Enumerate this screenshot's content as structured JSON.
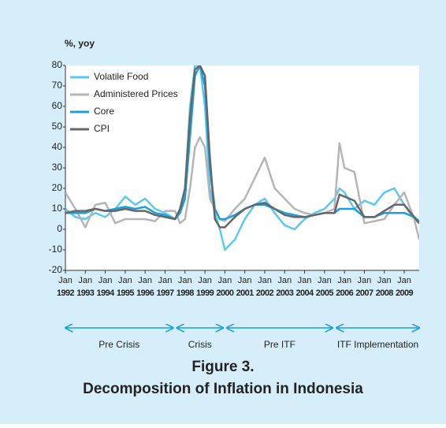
{
  "chart_data": {
    "type": "line",
    "y_label": "%, yoy",
    "figure_label": "Figure 3.",
    "title": "Decomposition of Inflation in Indonesia",
    "x": [
      1992,
      1992.5,
      1993,
      1993.5,
      1994,
      1994.5,
      1995,
      1995.5,
      1996,
      1996.5,
      1997,
      1997.5,
      1997.75,
      1998,
      1998.25,
      1998.5,
      1998.75,
      1999,
      1999.25,
      1999.5,
      1999.75,
      2000,
      2000.5,
      2001,
      2001.5,
      2002,
      2002.5,
      2003,
      2003.5,
      2004,
      2004.5,
      2005,
      2005.5,
      2005.75,
      2006,
      2006.5,
      2007,
      2007.5,
      2008,
      2008.5,
      2009,
      2009.5,
      2009.75
    ],
    "series": [
      {
        "name": "Volatile Food",
        "color": "#5cc8f0",
        "values": [
          10,
          6,
          5,
          8,
          6,
          10,
          16,
          12,
          15,
          10,
          8,
          5,
          8,
          20,
          60,
          80,
          80,
          60,
          20,
          8,
          0,
          -10,
          -5,
          5,
          12,
          15,
          8,
          2,
          0,
          5,
          8,
          10,
          15,
          20,
          18,
          10,
          14,
          12,
          18,
          20,
          12,
          5,
          3
        ]
      },
      {
        "name": "Administered Prices",
        "color": "#b5b5b5",
        "values": [
          18,
          10,
          1,
          12,
          13,
          3,
          5,
          5,
          5,
          4,
          9,
          9,
          3,
          5,
          20,
          40,
          45,
          40,
          15,
          10,
          5,
          4,
          10,
          15,
          25,
          35,
          20,
          15,
          10,
          8,
          7,
          8,
          10,
          42,
          30,
          28,
          3,
          4,
          5,
          12,
          18,
          5,
          -5
        ]
      },
      {
        "name": "Core",
        "color": "#18a0dc",
        "values": [
          8,
          8,
          8,
          10,
          9,
          10,
          11,
          10,
          11,
          8,
          7,
          5,
          8,
          15,
          45,
          75,
          80,
          70,
          30,
          10,
          5,
          5,
          7,
          10,
          12,
          12,
          10,
          8,
          7,
          6,
          7,
          8,
          8,
          10,
          10,
          10,
          6,
          6,
          8,
          8,
          8,
          6,
          4
        ]
      },
      {
        "name": "CPI",
        "color": "#666666",
        "values": [
          8,
          9,
          9,
          10,
          9,
          9,
          10,
          9,
          9,
          7,
          6,
          5,
          10,
          20,
          55,
          78,
          80,
          75,
          35,
          5,
          1,
          1,
          6,
          10,
          12,
          13,
          10,
          7,
          6,
          6,
          7,
          8,
          8,
          17,
          16,
          14,
          6,
          6,
          9,
          12,
          12,
          6,
          3
        ]
      }
    ],
    "xlim": [
      1992,
      2009.75
    ],
    "xticks": [
      {
        "value": 1992,
        "label": "Jan"
      },
      {
        "value": 1993,
        "label": "Jan"
      },
      {
        "value": 1994,
        "label": "Jan"
      },
      {
        "value": 1995,
        "label": "Jan"
      },
      {
        "value": 1996,
        "label": "Jan"
      },
      {
        "value": 1997,
        "label": "Jan"
      },
      {
        "value": 1998,
        "label": "Jan"
      },
      {
        "value": 1999,
        "label": "Jan"
      },
      {
        "value": 2000,
        "label": "Jan"
      },
      {
        "value": 2001,
        "label": "Jan"
      },
      {
        "value": 2002,
        "label": "Jan"
      },
      {
        "value": 2003,
        "label": "Jan"
      },
      {
        "value": 2004,
        "label": "Jan"
      },
      {
        "value": 2005,
        "label": "Jan"
      },
      {
        "value": 2006,
        "label": "Jan"
      },
      {
        "value": 2007,
        "label": "Jan"
      },
      {
        "value": 2008,
        "label": "Jan"
      },
      {
        "value": 2009,
        "label": "Jan"
      }
    ],
    "ylim": [
      -20,
      80
    ],
    "yticks": [
      -20,
      -10,
      0,
      10,
      20,
      30,
      40,
      50,
      60,
      70,
      80
    ],
    "legend": "upper left",
    "periods": [
      {
        "label": "Pre Crisis",
        "start": 1992,
        "end": 1997.4
      },
      {
        "label": "Crisis",
        "start": 1997.6,
        "end": 1999.9
      },
      {
        "label": "Pre ITF",
        "start": 2000.1,
        "end": 2005.4
      },
      {
        "label": "ITF Implementation",
        "start": 2005.6,
        "end": 2009.75
      }
    ]
  }
}
